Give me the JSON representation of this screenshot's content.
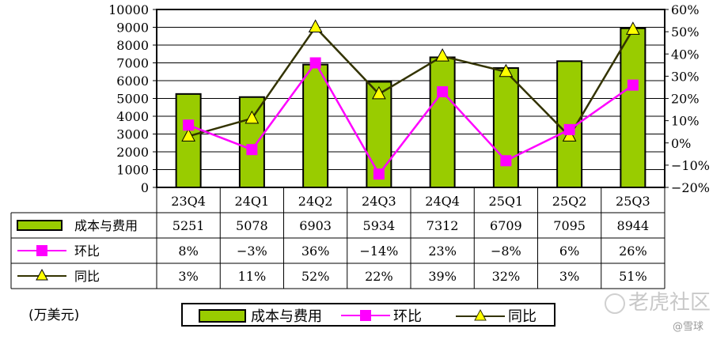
{
  "chart_data": {
    "type": "bar",
    "categories": [
      "23Q4",
      "24Q1",
      "24Q2",
      "24Q3",
      "24Q4",
      "25Q1",
      "25Q2",
      "25Q3"
    ],
    "series": [
      {
        "name": "成本与费用",
        "type": "bar",
        "axis": "left",
        "color": "#99cc00",
        "values": [
          5251,
          5078,
          6903,
          5934,
          7312,
          6709,
          7095,
          8944
        ]
      },
      {
        "name": "环比",
        "type": "line",
        "axis": "right",
        "color": "#ff00ff",
        "marker": "square",
        "values": [
          8,
          -3,
          36,
          -14,
          23,
          -8,
          6,
          26
        ]
      },
      {
        "name": "同比",
        "type": "line",
        "axis": "right",
        "color": "#333300",
        "marker": "triangle",
        "marker_fill": "#ffff00",
        "values": [
          3,
          11,
          52,
          22,
          39,
          32,
          3,
          51
        ]
      }
    ],
    "y_left": {
      "min": 0,
      "max": 10000,
      "step": 1000
    },
    "y_right": {
      "min": -20,
      "max": 60,
      "step": 10,
      "format": "percent"
    },
    "grid": true,
    "data_table": {
      "rows": [
        {
          "series": "成本与费用",
          "cells": [
            "5251",
            "5078",
            "6903",
            "5934",
            "7312",
            "6709",
            "7095",
            "8944"
          ]
        },
        {
          "series": "环比",
          "cells": [
            "8%",
            "−3%",
            "36%",
            "−14%",
            "23%",
            "−8%",
            "6%",
            "26%"
          ]
        },
        {
          "series": "同比",
          "cells": [
            "3%",
            "11%",
            "52%",
            "22%",
            "39%",
            "32%",
            "3%",
            "51%"
          ]
        }
      ]
    },
    "unit_label": "(万美元)",
    "legend": {
      "position": "bottom",
      "items": [
        "成本与费用",
        "环比",
        "同比"
      ]
    }
  },
  "watermark": {
    "main": "老虎社区",
    "sub": "@雪球"
  }
}
